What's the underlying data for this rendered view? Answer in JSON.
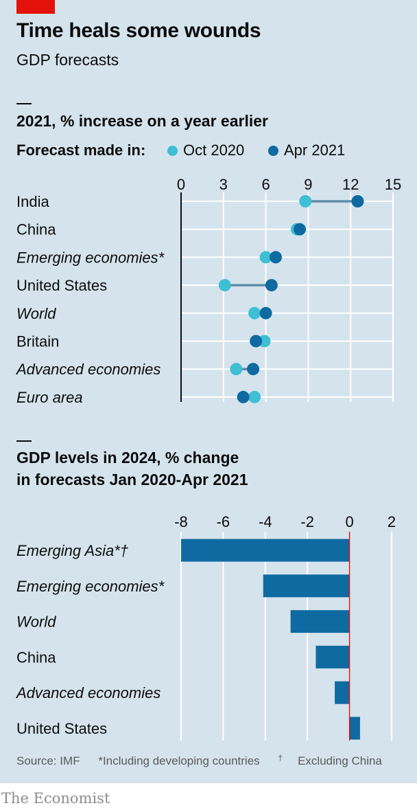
{
  "header": {
    "title": "Time heals some wounds",
    "subtitle": "GDP forecasts"
  },
  "brand_color": "#e3120b",
  "colors": {
    "oct2020": "#3ebfd3",
    "apr2021": "#0e6aa1",
    "bar": "#0e6aa1",
    "zero_line": "#e3120b",
    "background": "#d5e3ed"
  },
  "chart_data": [
    {
      "type": "dot",
      "title": "2021, % increase on a year earlier",
      "legend_label": "Forecast made in:",
      "legend_placement": "top-left",
      "xlim": [
        0,
        15
      ],
      "ticks": [
        "0",
        "3",
        "6",
        "9",
        "12",
        "15"
      ],
      "tick_values": [
        0,
        3,
        6,
        9,
        12,
        15
      ],
      "grid": true,
      "categories": [
        "India",
        "China",
        "Emerging economies*",
        "United States",
        "World",
        "Britain",
        "Advanced economies",
        "Euro area"
      ],
      "italic": [
        false,
        false,
        true,
        false,
        true,
        false,
        true,
        true
      ],
      "series": [
        {
          "name": "Oct 2020",
          "values": [
            8.8,
            8.2,
            6.0,
            3.1,
            5.2,
            5.9,
            3.9,
            5.2
          ]
        },
        {
          "name": "Apr 2021",
          "values": [
            12.5,
            8.4,
            6.7,
            6.4,
            6.0,
            5.3,
            5.1,
            4.4
          ]
        }
      ]
    },
    {
      "type": "bar",
      "orientation": "horizontal",
      "title": "GDP levels in 2024, % change in forecasts Jan 2020-Apr 2021",
      "title_lines": [
        "GDP levels in 2024, % change",
        "in forecasts Jan 2020-Apr 2021"
      ],
      "xlim": [
        -8,
        2
      ],
      "ticks": [
        "-8",
        "-6",
        "-4",
        "-2",
        "0",
        "2"
      ],
      "tick_values": [
        -8,
        -6,
        -4,
        -2,
        0,
        2
      ],
      "grid": true,
      "categories": [
        "Emerging Asia*†",
        "Emerging economies*",
        "World",
        "China",
        "Advanced economies",
        "United States"
      ],
      "italic": [
        true,
        true,
        true,
        false,
        true,
        false
      ],
      "values": [
        -8.0,
        -4.1,
        -2.8,
        -1.6,
        -0.7,
        0.5
      ]
    }
  ],
  "footer": {
    "source": "Source: IMF",
    "note1": "*Including developing countries",
    "note2_mark": "†",
    "note2": "Excluding China",
    "brand": "The Economist"
  }
}
